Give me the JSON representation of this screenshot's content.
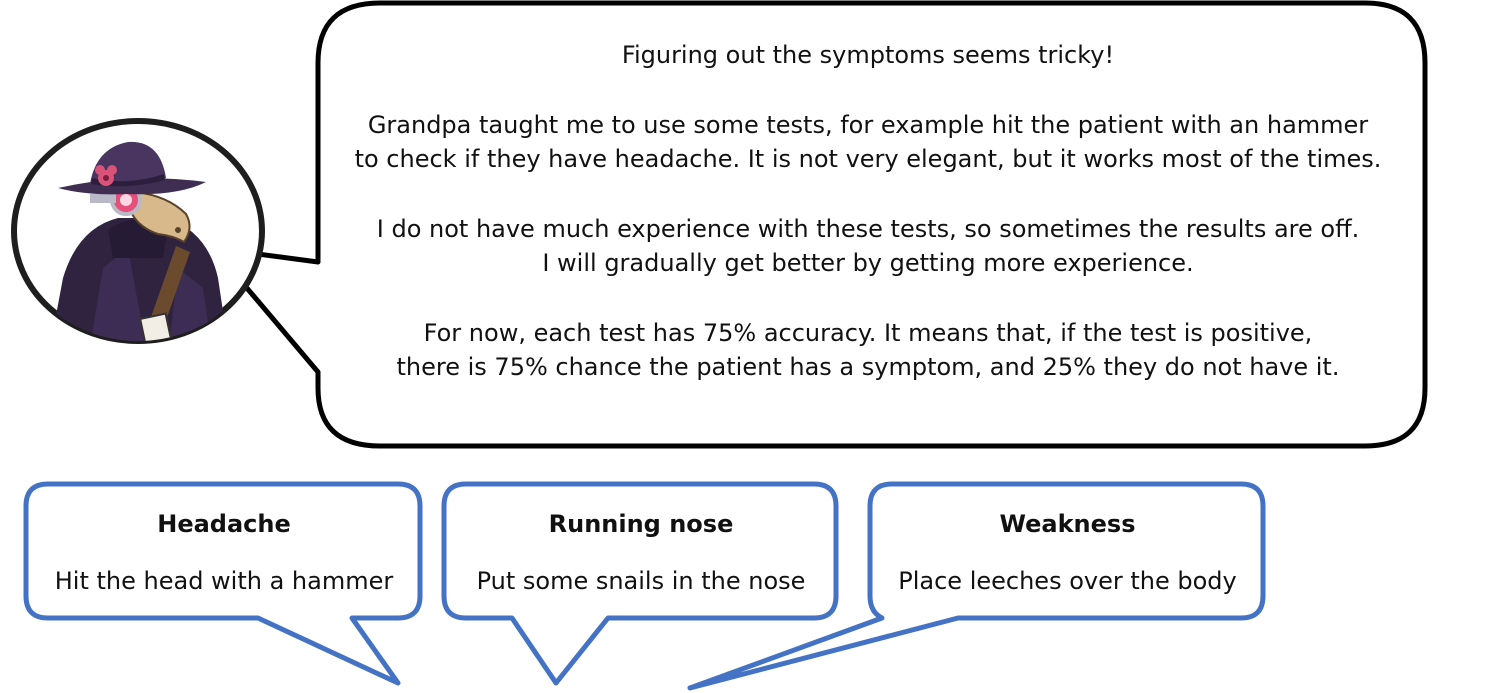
{
  "character": {
    "icon": "plague-doctor-avatar-icon",
    "hat_color": "#3f2d52",
    "coat_color": "#2f2340",
    "mask_color": "#d7b98c",
    "goggle_color": "#e4507a",
    "flower_color": "#d9527a"
  },
  "speech": {
    "paragraphs": [
      "Figuring out the symptoms seems tricky!",
      "Grandpa taught me to use some tests, for example hit the patient with an hammer\nto check if they have headache. It is not very elegant, but it works most of the times.",
      "I do not have much experience with these tests, so sometimes the results are off.\nI will gradually get better by getting more experience.",
      "For now, each test has 75% accuracy. It means that, if the test is positive,\nthere is 75% chance the patient has a symptom, and 25% they do not have it."
    ],
    "border_color": "#000000"
  },
  "tests": [
    {
      "symptom": "Headache",
      "method": "Hit the head with a hammer"
    },
    {
      "symptom": "Running nose",
      "method": "Put some snails in the nose"
    },
    {
      "symptom": "Weakness",
      "method": "Place leeches over the body"
    }
  ],
  "colors": {
    "card_border": "#4472c4",
    "card_fill": "#ffffff",
    "text": "#111111"
  }
}
